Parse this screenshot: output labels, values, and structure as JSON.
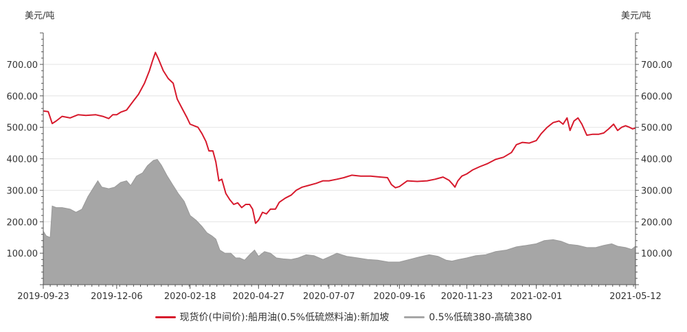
{
  "chart_data": {
    "type": "line",
    "y_unit_left": "美元/吨",
    "y_unit_right": "美元/吨",
    "ylim": [
      0,
      800
    ],
    "y_ticks": [
      100,
      200,
      300,
      400,
      500,
      600,
      700
    ],
    "y_tick_labels": [
      "100.00",
      "200.00",
      "300.00",
      "400.00",
      "500.00",
      "600.00",
      "700.00"
    ],
    "x_range": [
      "2019-09-23",
      "2021-05-12"
    ],
    "x_tick_labels": [
      "2019-09-23",
      "2019-12-06",
      "2020-02-18",
      "2020-04-27",
      "2020-07-07",
      "2020-09-16",
      "2020-11-23",
      "2021-02-01",
      "2021-05-12"
    ],
    "grid": true,
    "legend_position": "bottom",
    "series": [
      {
        "name": "现货价(中间价):船用油(0.5%低硫燃料油):新加坡",
        "style": "line",
        "color": "#d7192c",
        "points": [
          [
            "2019-09-23",
            552
          ],
          [
            "2019-09-28",
            550
          ],
          [
            "2019-10-02",
            512
          ],
          [
            "2019-10-06",
            520
          ],
          [
            "2019-10-12",
            535
          ],
          [
            "2019-10-20",
            530
          ],
          [
            "2019-10-28",
            540
          ],
          [
            "2019-11-05",
            538
          ],
          [
            "2019-11-15",
            540
          ],
          [
            "2019-11-22",
            535
          ],
          [
            "2019-11-28",
            528
          ],
          [
            "2019-12-02",
            540
          ],
          [
            "2019-12-06",
            540
          ],
          [
            "2019-12-10",
            548
          ],
          [
            "2019-12-16",
            555
          ],
          [
            "2019-12-22",
            580
          ],
          [
            "2019-12-28",
            605
          ],
          [
            "2020-01-03",
            640
          ],
          [
            "2020-01-08",
            680
          ],
          [
            "2020-01-11",
            710
          ],
          [
            "2020-01-14",
            738
          ],
          [
            "2020-01-17",
            718
          ],
          [
            "2020-01-22",
            680
          ],
          [
            "2020-01-27",
            655
          ],
          [
            "2020-02-01",
            640
          ],
          [
            "2020-02-05",
            590
          ],
          [
            "2020-02-10",
            560
          ],
          [
            "2020-02-15",
            530
          ],
          [
            "2020-02-18",
            510
          ],
          [
            "2020-02-22",
            505
          ],
          [
            "2020-02-26",
            500
          ],
          [
            "2020-03-01",
            480
          ],
          [
            "2020-03-05",
            455
          ],
          [
            "2020-03-08",
            425
          ],
          [
            "2020-03-12",
            425
          ],
          [
            "2020-03-15",
            390
          ],
          [
            "2020-03-18",
            330
          ],
          [
            "2020-03-21",
            335
          ],
          [
            "2020-03-25",
            290
          ],
          [
            "2020-03-29",
            270
          ],
          [
            "2020-04-02",
            255
          ],
          [
            "2020-04-06",
            260
          ],
          [
            "2020-04-10",
            245
          ],
          [
            "2020-04-14",
            255
          ],
          [
            "2020-04-18",
            255
          ],
          [
            "2020-04-21",
            240
          ],
          [
            "2020-04-24",
            195
          ],
          [
            "2020-04-27",
            205
          ],
          [
            "2020-05-01",
            230
          ],
          [
            "2020-05-05",
            225
          ],
          [
            "2020-05-09",
            240
          ],
          [
            "2020-05-14",
            240
          ],
          [
            "2020-05-18",
            262
          ],
          [
            "2020-05-24",
            275
          ],
          [
            "2020-05-30",
            285
          ],
          [
            "2020-06-04",
            300
          ],
          [
            "2020-06-10",
            310
          ],
          [
            "2020-06-16",
            315
          ],
          [
            "2020-06-24",
            322
          ],
          [
            "2020-07-01",
            330
          ],
          [
            "2020-07-07",
            330
          ],
          [
            "2020-07-15",
            335
          ],
          [
            "2020-07-22",
            340
          ],
          [
            "2020-07-30",
            348
          ],
          [
            "2020-08-08",
            345
          ],
          [
            "2020-08-18",
            345
          ],
          [
            "2020-08-28",
            342
          ],
          [
            "2020-09-04",
            340
          ],
          [
            "2020-09-08",
            318
          ],
          [
            "2020-09-12",
            308
          ],
          [
            "2020-09-16",
            312
          ],
          [
            "2020-09-24",
            330
          ],
          [
            "2020-10-04",
            328
          ],
          [
            "2020-10-14",
            330
          ],
          [
            "2020-10-22",
            335
          ],
          [
            "2020-10-30",
            342
          ],
          [
            "2020-11-05",
            332
          ],
          [
            "2020-11-09",
            318
          ],
          [
            "2020-11-11",
            310
          ],
          [
            "2020-11-14",
            330
          ],
          [
            "2020-11-18",
            345
          ],
          [
            "2020-11-23",
            352
          ],
          [
            "2020-11-29",
            365
          ],
          [
            "2020-12-06",
            375
          ],
          [
            "2020-12-14",
            385
          ],
          [
            "2020-12-22",
            398
          ],
          [
            "2020-12-30",
            405
          ],
          [
            "2021-01-07",
            420
          ],
          [
            "2021-01-12",
            445
          ],
          [
            "2021-01-18",
            452
          ],
          [
            "2021-01-25",
            450
          ],
          [
            "2021-02-01",
            458
          ],
          [
            "2021-02-06",
            480
          ],
          [
            "2021-02-12",
            500
          ],
          [
            "2021-02-18",
            515
          ],
          [
            "2021-02-24",
            520
          ],
          [
            "2021-02-28",
            510
          ],
          [
            "2021-03-04",
            530
          ],
          [
            "2021-03-07",
            490
          ],
          [
            "2021-03-11",
            520
          ],
          [
            "2021-03-15",
            530
          ],
          [
            "2021-03-19",
            510
          ],
          [
            "2021-03-24",
            475
          ],
          [
            "2021-03-30",
            478
          ],
          [
            "2021-04-05",
            478
          ],
          [
            "2021-04-10",
            482
          ],
          [
            "2021-04-15",
            495
          ],
          [
            "2021-04-20",
            510
          ],
          [
            "2021-04-24",
            490
          ],
          [
            "2021-04-28",
            500
          ],
          [
            "2021-05-02",
            505
          ],
          [
            "2021-05-06",
            500
          ],
          [
            "2021-05-09",
            495
          ],
          [
            "2021-05-12",
            498
          ]
        ]
      },
      {
        "name": "0.5%低硫380-高硫380",
        "style": "area",
        "color": "#a6a6a6",
        "points": [
          [
            "2019-09-23",
            170
          ],
          [
            "2019-09-26",
            155
          ],
          [
            "2019-09-30",
            150
          ],
          [
            "2019-10-02",
            250
          ],
          [
            "2019-10-06",
            245
          ],
          [
            "2019-10-12",
            245
          ],
          [
            "2019-10-20",
            240
          ],
          [
            "2019-10-26",
            230
          ],
          [
            "2019-11-01",
            240
          ],
          [
            "2019-11-07",
            280
          ],
          [
            "2019-11-13",
            310
          ],
          [
            "2019-11-17",
            330
          ],
          [
            "2019-11-21",
            310
          ],
          [
            "2019-11-28",
            305
          ],
          [
            "2019-12-04",
            310
          ],
          [
            "2019-12-10",
            325
          ],
          [
            "2019-12-16",
            330
          ],
          [
            "2019-12-20",
            315
          ],
          [
            "2019-12-26",
            345
          ],
          [
            "2020-01-01",
            355
          ],
          [
            "2020-01-06",
            378
          ],
          [
            "2020-01-12",
            395
          ],
          [
            "2020-01-16",
            398
          ],
          [
            "2020-01-20",
            380
          ],
          [
            "2020-01-26",
            345
          ],
          [
            "2020-02-01",
            315
          ],
          [
            "2020-02-06",
            290
          ],
          [
            "2020-02-12",
            265
          ],
          [
            "2020-02-18",
            220
          ],
          [
            "2020-02-24",
            205
          ],
          [
            "2020-03-01",
            185
          ],
          [
            "2020-03-06",
            165
          ],
          [
            "2020-03-11",
            155
          ],
          [
            "2020-03-15",
            145
          ],
          [
            "2020-03-19",
            110
          ],
          [
            "2020-03-24",
            100
          ],
          [
            "2020-03-30",
            100
          ],
          [
            "2020-04-04",
            85
          ],
          [
            "2020-04-08",
            85
          ],
          [
            "2020-04-13",
            78
          ],
          [
            "2020-04-18",
            95
          ],
          [
            "2020-04-23",
            110
          ],
          [
            "2020-04-27",
            90
          ],
          [
            "2020-05-03",
            105
          ],
          [
            "2020-05-09",
            100
          ],
          [
            "2020-05-15",
            85
          ],
          [
            "2020-05-22",
            82
          ],
          [
            "2020-05-30",
            80
          ],
          [
            "2020-06-06",
            85
          ],
          [
            "2020-06-14",
            95
          ],
          [
            "2020-06-22",
            92
          ],
          [
            "2020-07-01",
            80
          ],
          [
            "2020-07-07",
            88
          ],
          [
            "2020-07-15",
            100
          ],
          [
            "2020-07-25",
            90
          ],
          [
            "2020-08-05",
            85
          ],
          [
            "2020-08-15",
            80
          ],
          [
            "2020-08-25",
            78
          ],
          [
            "2020-09-05",
            72
          ],
          [
            "2020-09-16",
            72
          ],
          [
            "2020-09-26",
            80
          ],
          [
            "2020-10-06",
            88
          ],
          [
            "2020-10-16",
            95
          ],
          [
            "2020-10-25",
            90
          ],
          [
            "2020-11-02",
            78
          ],
          [
            "2020-11-08",
            75
          ],
          [
            "2020-11-15",
            80
          ],
          [
            "2020-11-23",
            85
          ],
          [
            "2020-12-02",
            92
          ],
          [
            "2020-12-12",
            95
          ],
          [
            "2020-12-22",
            105
          ],
          [
            "2021-01-02",
            110
          ],
          [
            "2021-01-12",
            120
          ],
          [
            "2021-01-22",
            125
          ],
          [
            "2021-02-01",
            130
          ],
          [
            "2021-02-09",
            140
          ],
          [
            "2021-02-18",
            143
          ],
          [
            "2021-02-26",
            138
          ],
          [
            "2021-03-06",
            128
          ],
          [
            "2021-03-15",
            125
          ],
          [
            "2021-03-24",
            118
          ],
          [
            "2021-04-02",
            118
          ],
          [
            "2021-04-10",
            125
          ],
          [
            "2021-04-18",
            130
          ],
          [
            "2021-04-24",
            122
          ],
          [
            "2021-05-02",
            118
          ],
          [
            "2021-05-08",
            112
          ],
          [
            "2021-05-12",
            122
          ]
        ]
      }
    ]
  }
}
